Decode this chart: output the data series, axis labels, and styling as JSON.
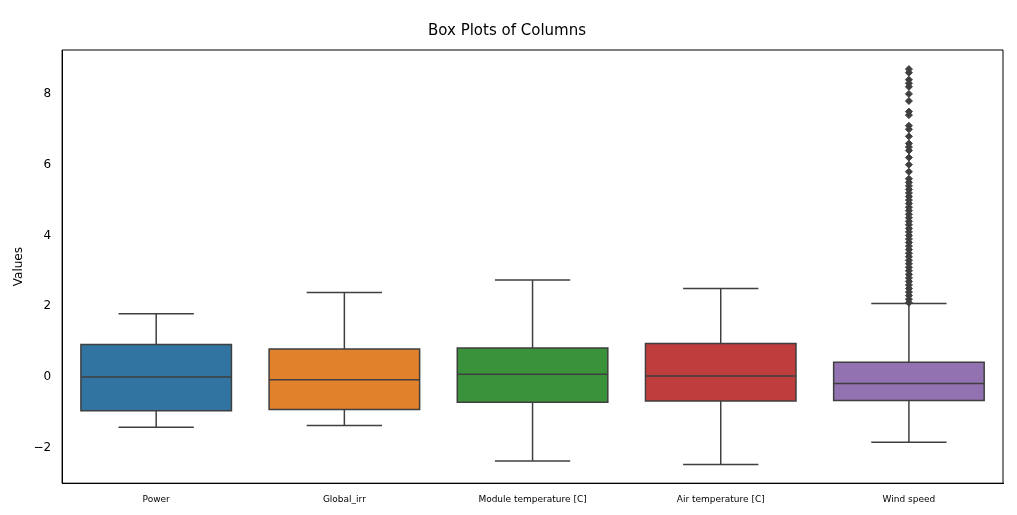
{
  "chart_data": {
    "type": "box",
    "title": "Box Plots of Columns",
    "ylabel": "Values",
    "categories": [
      "Power",
      "Global_irr",
      "Module temperature [C]",
      "Air temperature [C]",
      "Wind speed"
    ],
    "colors": [
      "#3274a1",
      "#e1812c",
      "#3a923a",
      "#c03d3e",
      "#9372b2"
    ],
    "boxes": [
      {
        "low": -1.42,
        "q1": -0.95,
        "median": 0.0,
        "q3": 0.92,
        "high": 1.79
      },
      {
        "low": -1.37,
        "q1": -0.92,
        "median": -0.08,
        "q3": 0.79,
        "high": 2.39
      },
      {
        "low": -2.37,
        "q1": -0.71,
        "median": 0.08,
        "q3": 0.82,
        "high": 2.74
      },
      {
        "low": -2.47,
        "q1": -0.68,
        "median": 0.03,
        "q3": 0.95,
        "high": 2.5
      },
      {
        "low": -1.84,
        "q1": -0.66,
        "median": -0.18,
        "q3": 0.42,
        "high": 2.08,
        "outliers": [
          2.1,
          2.2,
          2.3,
          2.4,
          2.5,
          2.6,
          2.7,
          2.8,
          2.9,
          3.0,
          3.1,
          3.2,
          3.3,
          3.4,
          3.5,
          3.6,
          3.7,
          3.8,
          3.9,
          4.0,
          4.1,
          4.2,
          4.3,
          4.4,
          4.5,
          4.6,
          4.7,
          4.8,
          4.9,
          5.0,
          5.1,
          5.2,
          5.3,
          5.4,
          5.5,
          5.6,
          5.8,
          6.0,
          6.2,
          6.4,
          6.5,
          6.6,
          6.8,
          7.0,
          7.1,
          7.4,
          7.5,
          7.8,
          8.0,
          8.2,
          8.3,
          8.4,
          8.6,
          8.7
        ]
      }
    ],
    "ylim": [
      -3.0,
      9.24
    ],
    "yticks": [
      -2,
      0,
      2,
      4,
      6,
      8
    ],
    "grid": false,
    "legend": false
  }
}
